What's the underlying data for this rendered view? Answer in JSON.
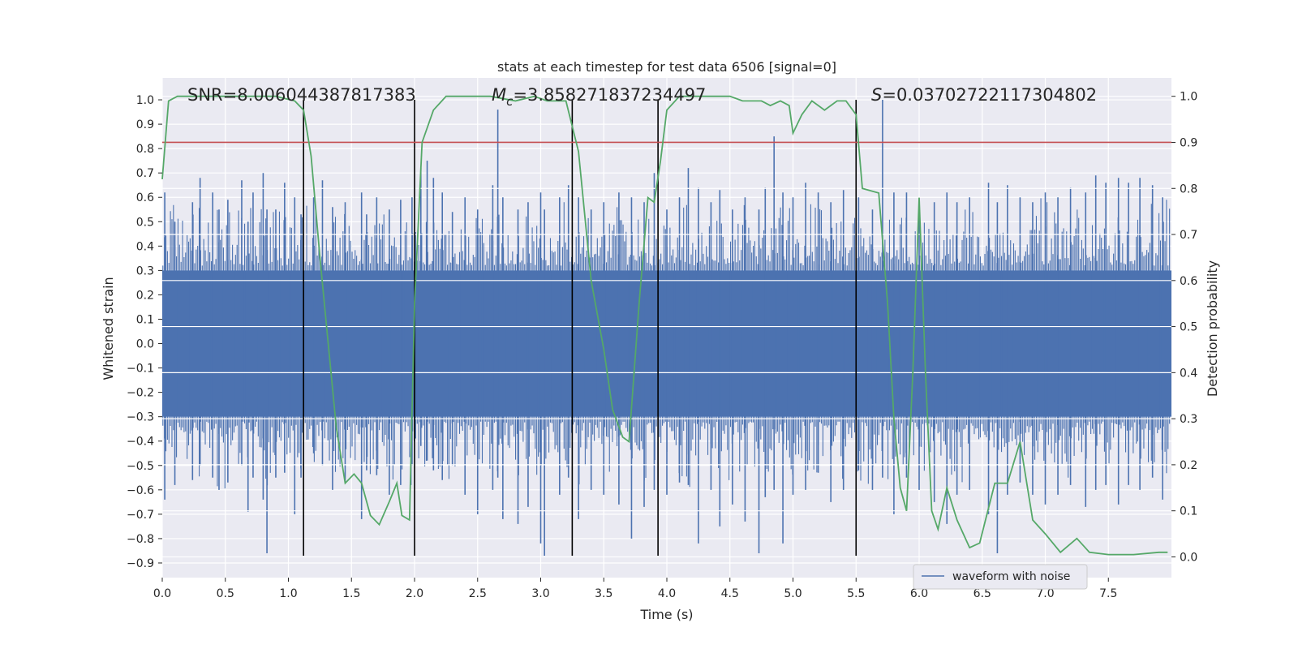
{
  "chart_data": {
    "type": "line",
    "title": "stats at each timestep for test data 6506 [signal=0]",
    "xlabel": "Time (s)",
    "ylabel_left": "Whitened strain",
    "ylabel_right": "Detection probability",
    "xlim": [
      0,
      8
    ],
    "ylim_left": [
      -0.96,
      1.09
    ],
    "ylim_right": [
      -0.045,
      1.04
    ],
    "x_ticks": [
      0.0,
      0.5,
      1.0,
      1.5,
      2.0,
      2.5,
      3.0,
      3.5,
      4.0,
      4.5,
      5.0,
      5.5,
      6.0,
      6.5,
      7.0,
      7.5
    ],
    "x_tick_labels": [
      "0.0",
      "0.5",
      "1.0",
      "1.5",
      "2.0",
      "2.5",
      "3.0",
      "3.5",
      "4.0",
      "4.5",
      "5.0",
      "5.5",
      "6.0",
      "6.5",
      "7.0",
      "7.5"
    ],
    "y_left_ticks": [
      1.0,
      0.9,
      0.8,
      0.7,
      0.6,
      0.5,
      0.4,
      0.3,
      0.2,
      0.1,
      0.0,
      -0.1,
      -0.2,
      -0.3,
      -0.4,
      -0.5,
      -0.6,
      -0.7,
      -0.8,
      -0.9
    ],
    "y_left_tick_labels": [
      "1.0",
      "0.9",
      "0.8",
      "0.7",
      "0.6",
      "0.5",
      "0.4",
      "0.3",
      "0.2",
      "0.1",
      "0.0",
      "−0.1",
      "−0.2",
      "−0.3",
      "−0.4",
      "−0.5",
      "−0.6",
      "−0.7",
      "−0.8",
      "−0.9"
    ],
    "y_right_ticks": [
      1.0,
      0.9,
      0.8,
      0.7,
      0.6,
      0.5,
      0.4,
      0.3,
      0.2,
      0.1,
      0.0
    ],
    "y_right_tick_labels": [
      "1.0",
      "0.9",
      "0.8",
      "0.7",
      "0.6",
      "0.5",
      "0.4",
      "0.3",
      "0.2",
      "0.1",
      "0.0"
    ],
    "grid": true,
    "legend": {
      "placement": "lower-right",
      "entries": [
        "waveform with noise"
      ]
    },
    "annotations": {
      "snr": "SNR=8.006044387817383",
      "mc_symbol": "M",
      "mc_subscript": "c",
      "mc_value": "=3.858271837234497",
      "s_symbol": "S",
      "s_value": "=0.03702722117304802"
    },
    "threshold_line": {
      "axis": "right",
      "value": 0.9,
      "color": "#c44e52"
    },
    "vertical_markers": {
      "x": [
        1.12,
        2.0,
        3.25,
        3.93,
        5.5
      ],
      "y_range_left": [
        -0.87,
        1.0
      ],
      "color": "#000000"
    },
    "waveform": {
      "name": "waveform with noise",
      "color": "#4c72b0",
      "band": [
        -0.3,
        0.3
      ],
      "spikes": [
        [
          0.02,
          0.62,
          -0.64
        ],
        [
          0.1,
          0.5,
          -0.58
        ],
        [
          0.24,
          0.58,
          -0.56
        ],
        [
          0.3,
          0.68,
          -0.5
        ],
        [
          0.4,
          0.62,
          -0.55
        ],
        [
          0.45,
          0.55,
          -0.6
        ],
        [
          0.52,
          0.59,
          -0.57
        ],
        [
          0.63,
          0.67,
          -0.5
        ],
        [
          0.68,
          0.5,
          -0.69
        ],
        [
          0.72,
          0.62,
          -0.55
        ],
        [
          0.8,
          0.7,
          -0.64
        ],
        [
          0.83,
          0.55,
          -0.86
        ],
        [
          0.9,
          0.55,
          -0.55
        ],
        [
          0.97,
          0.66,
          -0.53
        ],
        [
          1.05,
          0.6,
          -0.7
        ],
        [
          1.1,
          0.53,
          -0.55
        ],
        [
          1.2,
          0.6,
          -0.45
        ],
        [
          1.27,
          0.67,
          -0.5
        ],
        [
          1.35,
          0.56,
          -0.6
        ],
        [
          1.45,
          0.58,
          -0.57
        ],
        [
          1.58,
          0.62,
          -0.72
        ],
        [
          1.62,
          0.53,
          -0.52
        ],
        [
          1.7,
          0.6,
          -0.54
        ],
        [
          1.8,
          0.55,
          -0.62
        ],
        [
          1.89,
          0.59,
          -0.58
        ],
        [
          1.98,
          0.6,
          -0.5
        ],
        [
          2.05,
          0.72,
          -0.42
        ],
        [
          2.1,
          0.75,
          -0.48
        ],
        [
          2.15,
          0.68,
          -0.52
        ],
        [
          2.22,
          0.62,
          -0.56
        ],
        [
          2.3,
          0.54,
          -0.5
        ],
        [
          2.4,
          0.6,
          -0.62
        ],
        [
          2.5,
          0.55,
          -0.7
        ],
        [
          2.62,
          0.65,
          -0.6
        ],
        [
          2.66,
          0.96,
          -0.55
        ],
        [
          2.7,
          0.6,
          -0.72
        ],
        [
          2.82,
          0.55,
          -0.74
        ],
        [
          2.9,
          0.58,
          -0.67
        ],
        [
          3.0,
          0.62,
          -0.82
        ],
        [
          3.03,
          0.55,
          -0.87
        ],
        [
          3.15,
          0.6,
          -0.62
        ],
        [
          3.22,
          0.65,
          -0.55
        ],
        [
          3.3,
          0.6,
          -0.72
        ],
        [
          3.4,
          0.55,
          -0.6
        ],
        [
          3.5,
          0.58,
          -0.62
        ],
        [
          3.62,
          0.62,
          -0.66
        ],
        [
          3.72,
          0.6,
          -0.8
        ],
        [
          3.82,
          0.58,
          -0.67
        ],
        [
          3.9,
          0.7,
          -0.6
        ],
        [
          4.0,
          0.55,
          -0.62
        ],
        [
          4.1,
          0.6,
          -0.57
        ],
        [
          4.17,
          0.72,
          -0.58
        ],
        [
          4.25,
          0.64,
          -0.82
        ],
        [
          4.35,
          0.58,
          -0.6
        ],
        [
          4.42,
          0.63,
          -0.75
        ],
        [
          4.52,
          0.55,
          -0.66
        ],
        [
          4.62,
          0.6,
          -0.73
        ],
        [
          4.73,
          0.55,
          -0.86
        ],
        [
          4.78,
          0.64,
          -0.63
        ],
        [
          4.85,
          0.85,
          -0.6
        ],
        [
          4.92,
          0.62,
          -0.82
        ],
        [
          5.0,
          0.6,
          -0.62
        ],
        [
          5.1,
          0.66,
          -0.6
        ],
        [
          5.2,
          0.62,
          -0.53
        ],
        [
          5.3,
          0.58,
          -0.65
        ],
        [
          5.4,
          0.63,
          -0.6
        ],
        [
          5.52,
          0.6,
          -0.52
        ],
        [
          5.63,
          0.55,
          -0.6
        ],
        [
          5.71,
          1.0,
          -0.55
        ],
        [
          5.8,
          0.62,
          -0.7
        ],
        [
          5.9,
          0.62,
          -0.55
        ],
        [
          6.0,
          0.55,
          -0.6
        ],
        [
          6.12,
          0.58,
          -0.65
        ],
        [
          6.22,
          0.62,
          -0.74
        ],
        [
          6.3,
          0.58,
          -0.62
        ],
        [
          6.4,
          0.6,
          -0.6
        ],
        [
          6.55,
          0.66,
          -0.7
        ],
        [
          6.62,
          0.58,
          -0.86
        ],
        [
          6.7,
          0.65,
          -0.62
        ],
        [
          6.8,
          0.6,
          -0.57
        ],
        [
          6.9,
          0.58,
          -0.62
        ],
        [
          7.0,
          0.62,
          -0.66
        ],
        [
          7.1,
          0.6,
          -0.62
        ],
        [
          7.2,
          0.64,
          -0.58
        ],
        [
          7.32,
          0.62,
          -0.67
        ],
        [
          7.4,
          0.69,
          -0.6
        ],
        [
          7.48,
          0.66,
          -0.58
        ],
        [
          7.58,
          0.68,
          -0.66
        ],
        [
          7.66,
          0.66,
          -0.58
        ],
        [
          7.75,
          0.68,
          -0.6
        ],
        [
          7.85,
          0.65,
          -0.55
        ],
        [
          7.93,
          0.6,
          -0.64
        ]
      ]
    },
    "detection_probability": {
      "color": "#55a868",
      "points": [
        [
          0.0,
          0.82
        ],
        [
          0.05,
          0.99
        ],
        [
          0.12,
          1.0
        ],
        [
          0.5,
          1.0
        ],
        [
          0.9,
          1.0
        ],
        [
          1.05,
          0.99
        ],
        [
          1.12,
          0.97
        ],
        [
          1.18,
          0.87
        ],
        [
          1.25,
          0.65
        ],
        [
          1.32,
          0.45
        ],
        [
          1.38,
          0.28
        ],
        [
          1.45,
          0.16
        ],
        [
          1.52,
          0.18
        ],
        [
          1.58,
          0.16
        ],
        [
          1.65,
          0.09
        ],
        [
          1.72,
          0.07
        ],
        [
          1.8,
          0.12
        ],
        [
          1.86,
          0.16
        ],
        [
          1.9,
          0.09
        ],
        [
          1.96,
          0.08
        ],
        [
          2.0,
          0.55
        ],
        [
          2.06,
          0.9
        ],
        [
          2.15,
          0.97
        ],
        [
          2.25,
          1.0
        ],
        [
          2.6,
          1.0
        ],
        [
          2.8,
          0.99
        ],
        [
          2.95,
          1.0
        ],
        [
          3.05,
          0.99
        ],
        [
          3.2,
          0.99
        ],
        [
          3.3,
          0.88
        ],
        [
          3.4,
          0.6
        ],
        [
          3.5,
          0.45
        ],
        [
          3.57,
          0.32
        ],
        [
          3.65,
          0.26
        ],
        [
          3.7,
          0.25
        ],
        [
          3.78,
          0.55
        ],
        [
          3.85,
          0.78
        ],
        [
          3.9,
          0.77
        ],
        [
          3.95,
          0.86
        ],
        [
          4.0,
          0.97
        ],
        [
          4.1,
          1.0
        ],
        [
          4.5,
          1.0
        ],
        [
          4.6,
          0.99
        ],
        [
          4.75,
          0.99
        ],
        [
          4.82,
          0.98
        ],
        [
          4.9,
          0.99
        ],
        [
          4.97,
          0.98
        ],
        [
          5.0,
          0.92
        ],
        [
          5.07,
          0.96
        ],
        [
          5.15,
          0.99
        ],
        [
          5.25,
          0.97
        ],
        [
          5.35,
          0.99
        ],
        [
          5.42,
          0.99
        ],
        [
          5.5,
          0.96
        ],
        [
          5.55,
          0.8
        ],
        [
          5.68,
          0.79
        ],
        [
          5.75,
          0.55
        ],
        [
          5.8,
          0.3
        ],
        [
          5.85,
          0.15
        ],
        [
          5.9,
          0.1
        ],
        [
          5.95,
          0.4
        ],
        [
          6.0,
          0.78
        ],
        [
          6.05,
          0.4
        ],
        [
          6.1,
          0.1
        ],
        [
          6.15,
          0.06
        ],
        [
          6.22,
          0.15
        ],
        [
          6.3,
          0.08
        ],
        [
          6.4,
          0.02
        ],
        [
          6.48,
          0.03
        ],
        [
          6.6,
          0.16
        ],
        [
          6.7,
          0.16
        ],
        [
          6.8,
          0.25
        ],
        [
          6.9,
          0.08
        ],
        [
          7.0,
          0.05
        ],
        [
          7.12,
          0.01
        ],
        [
          7.25,
          0.04
        ],
        [
          7.35,
          0.01
        ],
        [
          7.5,
          0.005
        ],
        [
          7.7,
          0.005
        ],
        [
          7.9,
          0.01
        ],
        [
          7.97,
          0.01
        ]
      ]
    }
  }
}
